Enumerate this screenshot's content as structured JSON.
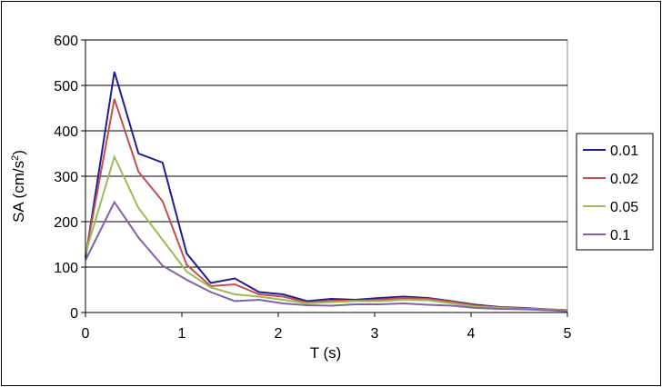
{
  "chart_data": {
    "type": "line",
    "title": "",
    "xlabel": "T (s)",
    "ylabel": "SA (cm/s",
    "ylabel_sup": "2",
    "ylabel_tail": ")",
    "xlim": [
      0,
      5
    ],
    "ylim": [
      0,
      600
    ],
    "xticks": [
      "0",
      "1",
      "2",
      "3",
      "4",
      "5"
    ],
    "yticks": [
      "0",
      "100",
      "200",
      "300",
      "400",
      "500",
      "600"
    ],
    "grid": "horizontal",
    "legend_position": "right",
    "x": [
      0,
      0.3,
      0.55,
      0.8,
      1.05,
      1.3,
      1.55,
      1.8,
      2.05,
      2.3,
      2.55,
      2.8,
      3.05,
      3.3,
      3.55,
      3.8,
      4.05,
      4.3,
      4.55,
      4.8,
      5.0
    ],
    "series": [
      {
        "name": "0.01",
        "color": "#1f1f8f",
        "values": [
          120,
          530,
          350,
          330,
          130,
          65,
          75,
          45,
          40,
          25,
          30,
          28,
          32,
          35,
          32,
          25,
          17,
          12,
          10,
          7,
          5
        ]
      },
      {
        "name": "0.02",
        "color": "#c0504d",
        "values": [
          125,
          470,
          310,
          245,
          105,
          58,
          62,
          40,
          35,
          22,
          26,
          26,
          28,
          32,
          30,
          24,
          15,
          11,
          9,
          7,
          5
        ]
      },
      {
        "name": "0.05",
        "color": "#9bbb59",
        "values": [
          130,
          343,
          230,
          160,
          90,
          55,
          40,
          35,
          28,
          20,
          23,
          25,
          25,
          28,
          27,
          20,
          13,
          10,
          8,
          6,
          4
        ]
      },
      {
        "name": "0.1",
        "color": "#8064a2",
        "values": [
          115,
          243,
          165,
          103,
          72,
          45,
          25,
          28,
          20,
          16,
          15,
          18,
          18,
          20,
          17,
          15,
          10,
          8,
          7,
          5,
          3
        ]
      }
    ]
  }
}
